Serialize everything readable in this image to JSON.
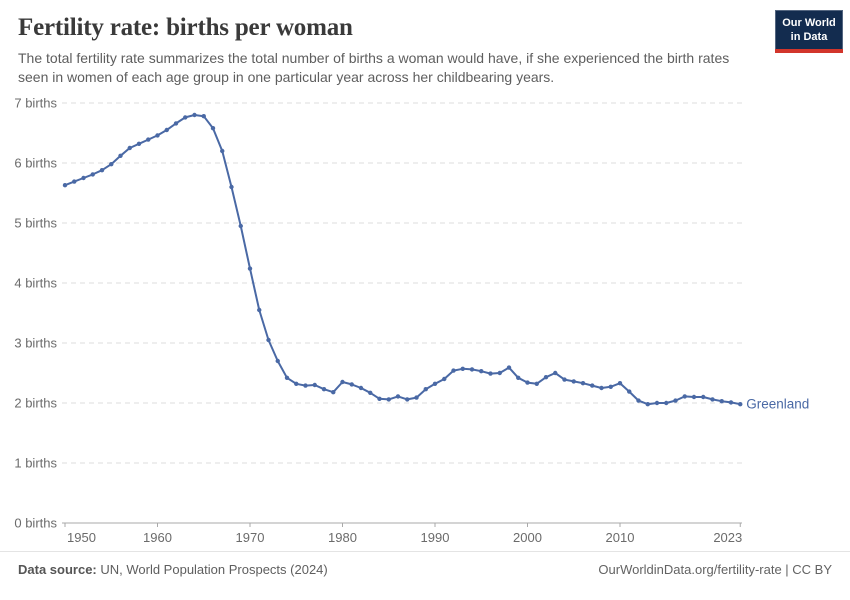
{
  "header": {
    "title": "Fertility rate: births per woman",
    "subtitle": "The total fertility rate summarizes the total number of births a woman would have, if she experienced the birth rates seen in women of each age group in one particular year across her childbearing years.",
    "logo": {
      "line1": "Our World",
      "line2": "in Data"
    }
  },
  "chart_data": {
    "type": "line",
    "title": "Fertility rate: births per woman",
    "xlabel": "",
    "ylabel": "births",
    "xlim": [
      1950,
      2023
    ],
    "ylim": [
      0,
      7
    ],
    "grid": "horizontal dashed",
    "legend_position": "end-of-line label",
    "x_ticks": [
      1950,
      1960,
      1970,
      1980,
      1990,
      2000,
      2010,
      2023
    ],
    "y_ticks": [
      0,
      1,
      2,
      3,
      4,
      5,
      6,
      7
    ],
    "y_tick_suffix": " births",
    "line_color": "#4a69a5",
    "entity_label": "Greenland",
    "x": [
      1950,
      1951,
      1952,
      1953,
      1954,
      1955,
      1956,
      1957,
      1958,
      1959,
      1960,
      1961,
      1962,
      1963,
      1964,
      1965,
      1966,
      1967,
      1968,
      1969,
      1970,
      1971,
      1972,
      1973,
      1974,
      1975,
      1976,
      1977,
      1978,
      1979,
      1980,
      1981,
      1982,
      1983,
      1984,
      1985,
      1986,
      1987,
      1988,
      1989,
      1990,
      1991,
      1992,
      1993,
      1994,
      1995,
      1996,
      1997,
      1998,
      1999,
      2000,
      2001,
      2002,
      2003,
      2004,
      2005,
      2006,
      2007,
      2008,
      2009,
      2010,
      2011,
      2012,
      2013,
      2014,
      2015,
      2016,
      2017,
      2018,
      2019,
      2020,
      2021,
      2022,
      2023
    ],
    "series": [
      {
        "name": "Greenland",
        "color": "#4a69a5",
        "values": [
          5.63,
          5.69,
          5.75,
          5.81,
          5.88,
          5.98,
          6.12,
          6.25,
          6.32,
          6.39,
          6.46,
          6.55,
          6.66,
          6.76,
          6.8,
          6.78,
          6.58,
          6.2,
          5.6,
          4.95,
          4.24,
          3.55,
          3.05,
          2.7,
          2.42,
          2.32,
          2.29,
          2.3,
          2.23,
          2.18,
          2.35,
          2.31,
          2.25,
          2.17,
          2.07,
          2.06,
          2.11,
          2.06,
          2.09,
          2.23,
          2.32,
          2.4,
          2.54,
          2.57,
          2.56,
          2.53,
          2.49,
          2.5,
          2.59,
          2.42,
          2.34,
          2.32,
          2.43,
          2.5,
          2.39,
          2.36,
          2.33,
          2.29,
          2.25,
          2.27,
          2.33,
          2.19,
          2.04,
          1.98,
          2.0,
          2.0,
          2.04,
          2.11,
          2.1,
          2.1,
          2.06,
          2.03,
          2.01,
          1.98
        ]
      }
    ]
  },
  "footer": {
    "source_label": "Data source:",
    "source_text": " UN, World Population Prospects (2024)",
    "right_text": "OurWorldinData.org/fertility-rate | CC BY"
  },
  "colors": {
    "line": "#4a69a5",
    "grid": "#dedede",
    "axis": "#a9a9a9",
    "tick_label": "#6b6b6b",
    "logo_bg": "#132c4f",
    "logo_red": "#d2352b"
  }
}
